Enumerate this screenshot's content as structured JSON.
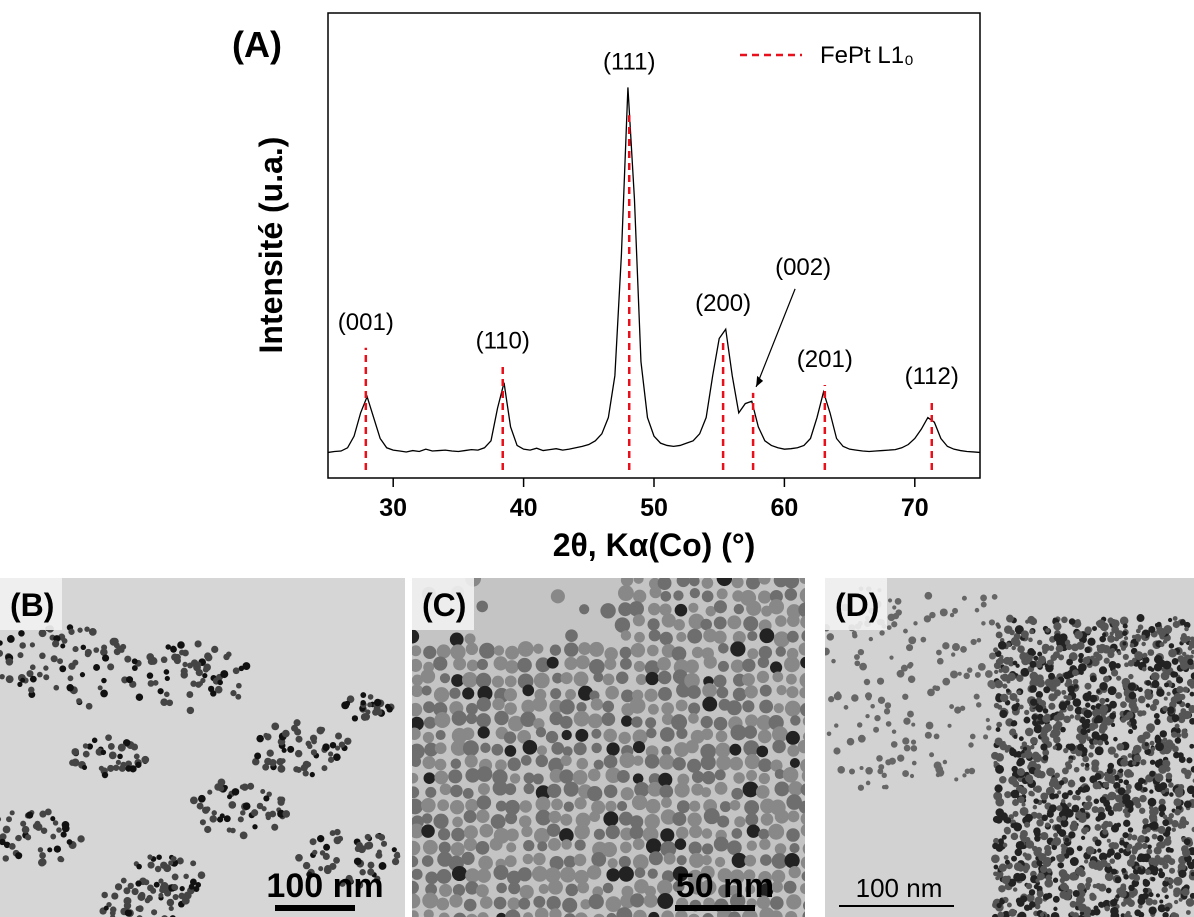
{
  "chart_data": {
    "type": "line",
    "panel_label": "(A)",
    "xlabel": "2θ, Kα(Co) (°)",
    "ylabel": "Intensité (u.a.)",
    "xlim": [
      25,
      75
    ],
    "xticks": [
      30,
      40,
      50,
      60,
      70
    ],
    "ylim": [
      0,
      100
    ],
    "color": "#000000",
    "x": [
      25,
      25.5,
      26,
      26.5,
      27,
      27.5,
      28,
      28.5,
      29,
      29.5,
      30,
      30.5,
      31,
      31.5,
      32,
      32.5,
      33,
      33.5,
      34,
      34.5,
      35,
      35.5,
      36,
      36.5,
      37,
      37.5,
      38,
      38.5,
      39,
      39.5,
      40,
      40.5,
      41,
      41.5,
      42,
      42.5,
      43,
      43.5,
      44,
      44.5,
      45,
      45.5,
      46,
      46.5,
      47,
      47.5,
      48,
      48.5,
      49,
      49.5,
      50,
      50.5,
      51,
      51.5,
      52,
      52.5,
      53,
      53.5,
      54,
      54.5,
      55,
      55.5,
      56,
      56.5,
      57,
      57.5,
      58,
      58.5,
      59,
      59.5,
      60,
      60.5,
      61,
      61.5,
      62,
      62.5,
      63,
      63.5,
      64,
      64.5,
      65,
      65.5,
      66,
      66.5,
      67,
      67.5,
      68,
      68.5,
      69,
      69.5,
      70,
      70.5,
      71,
      71.5,
      72,
      72.5,
      73,
      73.5,
      74,
      74.5,
      75
    ],
    "values": [
      5.5,
      5.7,
      5.8,
      6.5,
      9,
      14,
      17.5,
      13,
      8.5,
      6.5,
      6,
      5.8,
      5.6,
      5.9,
      5.7,
      6.2,
      5.8,
      5.9,
      6.0,
      5.8,
      5.7,
      5.9,
      6.1,
      6.0,
      6.5,
      8,
      15,
      20.5,
      11,
      7,
      6.2,
      6.0,
      6.4,
      5.9,
      6.1,
      6.3,
      6.0,
      6.2,
      6.5,
      6.8,
      7.2,
      8,
      9.5,
      13,
      22,
      48,
      84,
      60,
      25,
      13,
      9,
      7.5,
      7,
      6.8,
      7,
      7.5,
      8,
      9.5,
      13,
      22,
      30,
      32,
      22,
      14,
      16,
      16.5,
      11,
      8,
      7,
      6.5,
      6.2,
      6.3,
      6.5,
      7,
      8.5,
      13,
      18.5,
      14,
      8.5,
      6.8,
      6.2,
      6,
      5.8,
      5.7,
      5.8,
      5.9,
      6,
      6.1,
      6.5,
      7.2,
      8.5,
      10.5,
      13,
      12,
      8.5,
      6.8,
      6.2,
      5.9,
      5.7,
      5.6,
      5.5
    ],
    "reference": {
      "name": "FePt L1₀",
      "color": "#e8101a",
      "style": "dashed",
      "x": [
        27.9,
        38.4,
        48.1,
        55.3,
        57.6,
        63.1,
        71.3
      ],
      "values": [
        28,
        24,
        78,
        29.7,
        18.3,
        20,
        16.3
      ],
      "labels": [
        "(001)",
        "(110)",
        "(111)",
        "(200)",
        "(002)",
        "(201)",
        "(112)"
      ]
    },
    "legend": "upper right"
  },
  "panels": [
    {
      "label": "(B)",
      "scale": "100 nm"
    },
    {
      "label": "(C)",
      "scale": "50 nm"
    },
    {
      "label": "(D)",
      "scale": "100 nm"
    }
  ]
}
